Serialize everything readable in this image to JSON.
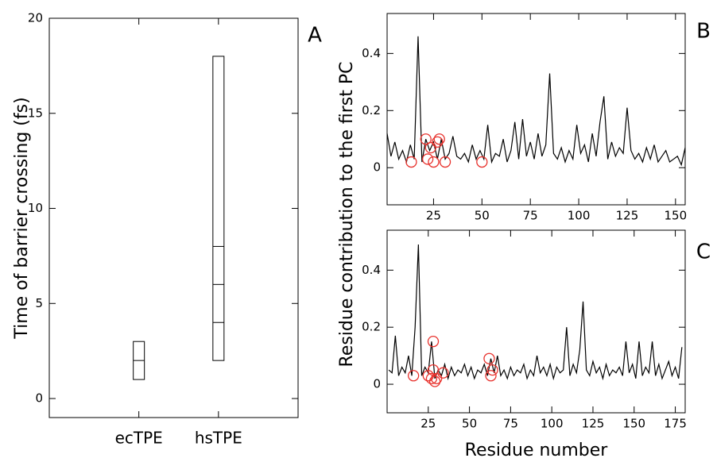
{
  "chart_data": [
    {
      "type": "box",
      "panel_label": "A",
      "ylabel": "Time of barrier crossing (fs)",
      "categories": [
        "ecTPE",
        "hsTPE"
      ],
      "low": [
        1,
        2
      ],
      "high": [
        3,
        18
      ],
      "lines": [
        [
          2
        ],
        [
          4,
          6,
          8
        ]
      ],
      "ylim": [
        -1,
        20
      ],
      "yticks": [
        0,
        5,
        10,
        15,
        20
      ],
      "color": "#000000"
    },
    {
      "type": "line",
      "panel_label": "B",
      "ylabel": "Residue contribution to the first PC",
      "x": [
        1,
        3,
        5,
        7,
        9,
        11,
        13,
        15,
        17,
        19,
        21,
        23,
        25,
        27,
        29,
        31,
        33,
        35,
        37,
        39,
        41,
        43,
        45,
        47,
        49,
        51,
        53,
        55,
        57,
        59,
        61,
        63,
        65,
        67,
        69,
        71,
        73,
        75,
        77,
        79,
        81,
        83,
        85,
        87,
        89,
        91,
        93,
        95,
        97,
        99,
        101,
        103,
        105,
        107,
        109,
        111,
        113,
        115,
        117,
        119,
        121,
        123,
        125,
        127,
        129,
        131,
        133,
        135,
        137,
        139,
        141,
        143,
        145,
        147,
        149,
        151,
        153,
        155
      ],
      "values": [
        0.12,
        0.04,
        0.09,
        0.03,
        0.06,
        0.02,
        0.08,
        0.03,
        0.46,
        0.02,
        0.1,
        0.06,
        0.09,
        0.03,
        0.1,
        0.03,
        0.05,
        0.11,
        0.04,
        0.03,
        0.05,
        0.02,
        0.08,
        0.03,
        0.06,
        0.03,
        0.15,
        0.02,
        0.05,
        0.04,
        0.1,
        0.02,
        0.06,
        0.16,
        0.03,
        0.17,
        0.04,
        0.09,
        0.03,
        0.12,
        0.04,
        0.08,
        0.33,
        0.05,
        0.03,
        0.07,
        0.02,
        0.06,
        0.03,
        0.15,
        0.05,
        0.08,
        0.02,
        0.12,
        0.04,
        0.16,
        0.25,
        0.03,
        0.09,
        0.04,
        0.07,
        0.05,
        0.21,
        0.06,
        0.03,
        0.05,
        0.02,
        0.07,
        0.03,
        0.08,
        0.02,
        0.04,
        0.06,
        0.02,
        0.03,
        0.04,
        0.01,
        0.07
      ],
      "highlights": {
        "x": [
          13.5,
          21,
          22,
          23.5,
          25,
          27,
          28,
          31,
          50
        ],
        "y": [
          0.02,
          0.1,
          0.03,
          0.07,
          0.02,
          0.09,
          0.1,
          0.02,
          0.02
        ],
        "color": "#e8322d"
      },
      "color": "#000000",
      "xlim": [
        1,
        155
      ],
      "ylim": [
        -0.13,
        0.54
      ],
      "xticks": [
        25,
        50,
        75,
        100,
        125,
        150
      ],
      "yticks": [
        0,
        0.2,
        0.4
      ]
    },
    {
      "type": "line",
      "panel_label": "C",
      "xlabel": "Residue number",
      "x": [
        1,
        3,
        5,
        7,
        9,
        11,
        13,
        15,
        17,
        19,
        21,
        23,
        25,
        27,
        29,
        31,
        33,
        35,
        37,
        39,
        41,
        43,
        45,
        47,
        49,
        51,
        53,
        55,
        57,
        59,
        61,
        63,
        65,
        67,
        69,
        71,
        73,
        75,
        77,
        79,
        81,
        83,
        85,
        87,
        89,
        91,
        93,
        95,
        97,
        99,
        101,
        103,
        105,
        107,
        109,
        111,
        113,
        115,
        117,
        119,
        121,
        123,
        125,
        127,
        129,
        131,
        133,
        135,
        137,
        139,
        141,
        143,
        145,
        147,
        149,
        151,
        153,
        155,
        157,
        159,
        161,
        163,
        165,
        167,
        169,
        171,
        173,
        175,
        177,
        179
      ],
      "values": [
        0.05,
        0.04,
        0.17,
        0.03,
        0.06,
        0.04,
        0.1,
        0.03,
        0.2,
        0.49,
        0.03,
        0.06,
        0.04,
        0.15,
        0.02,
        0.05,
        0.03,
        0.07,
        0.02,
        0.06,
        0.03,
        0.05,
        0.04,
        0.07,
        0.03,
        0.06,
        0.02,
        0.05,
        0.04,
        0.07,
        0.03,
        0.09,
        0.04,
        0.1,
        0.03,
        0.05,
        0.02,
        0.06,
        0.03,
        0.05,
        0.04,
        0.07,
        0.02,
        0.05,
        0.03,
        0.1,
        0.04,
        0.06,
        0.03,
        0.07,
        0.02,
        0.06,
        0.04,
        0.05,
        0.2,
        0.03,
        0.07,
        0.04,
        0.12,
        0.29,
        0.05,
        0.03,
        0.08,
        0.04,
        0.06,
        0.02,
        0.07,
        0.03,
        0.05,
        0.04,
        0.06,
        0.03,
        0.15,
        0.04,
        0.07,
        0.02,
        0.15,
        0.03,
        0.06,
        0.04,
        0.15,
        0.03,
        0.07,
        0.02,
        0.05,
        0.08,
        0.03,
        0.06,
        0.02,
        0.13
      ],
      "highlights": {
        "x": [
          16,
          25,
          27,
          28,
          28,
          29,
          30,
          34,
          62,
          63,
          64
        ],
        "y": [
          0.03,
          0.03,
          0.02,
          0.15,
          0.05,
          0.01,
          0.02,
          0.04,
          0.09,
          0.03,
          0.05
        ],
        "color": "#e8322d"
      },
      "color": "#000000",
      "xlim": [
        0,
        181
      ],
      "ylim": [
        -0.1,
        0.54
      ],
      "xticks": [
        25,
        50,
        75,
        100,
        125,
        150,
        175
      ],
      "yticks": [
        0,
        0.2,
        0.4
      ]
    }
  ]
}
